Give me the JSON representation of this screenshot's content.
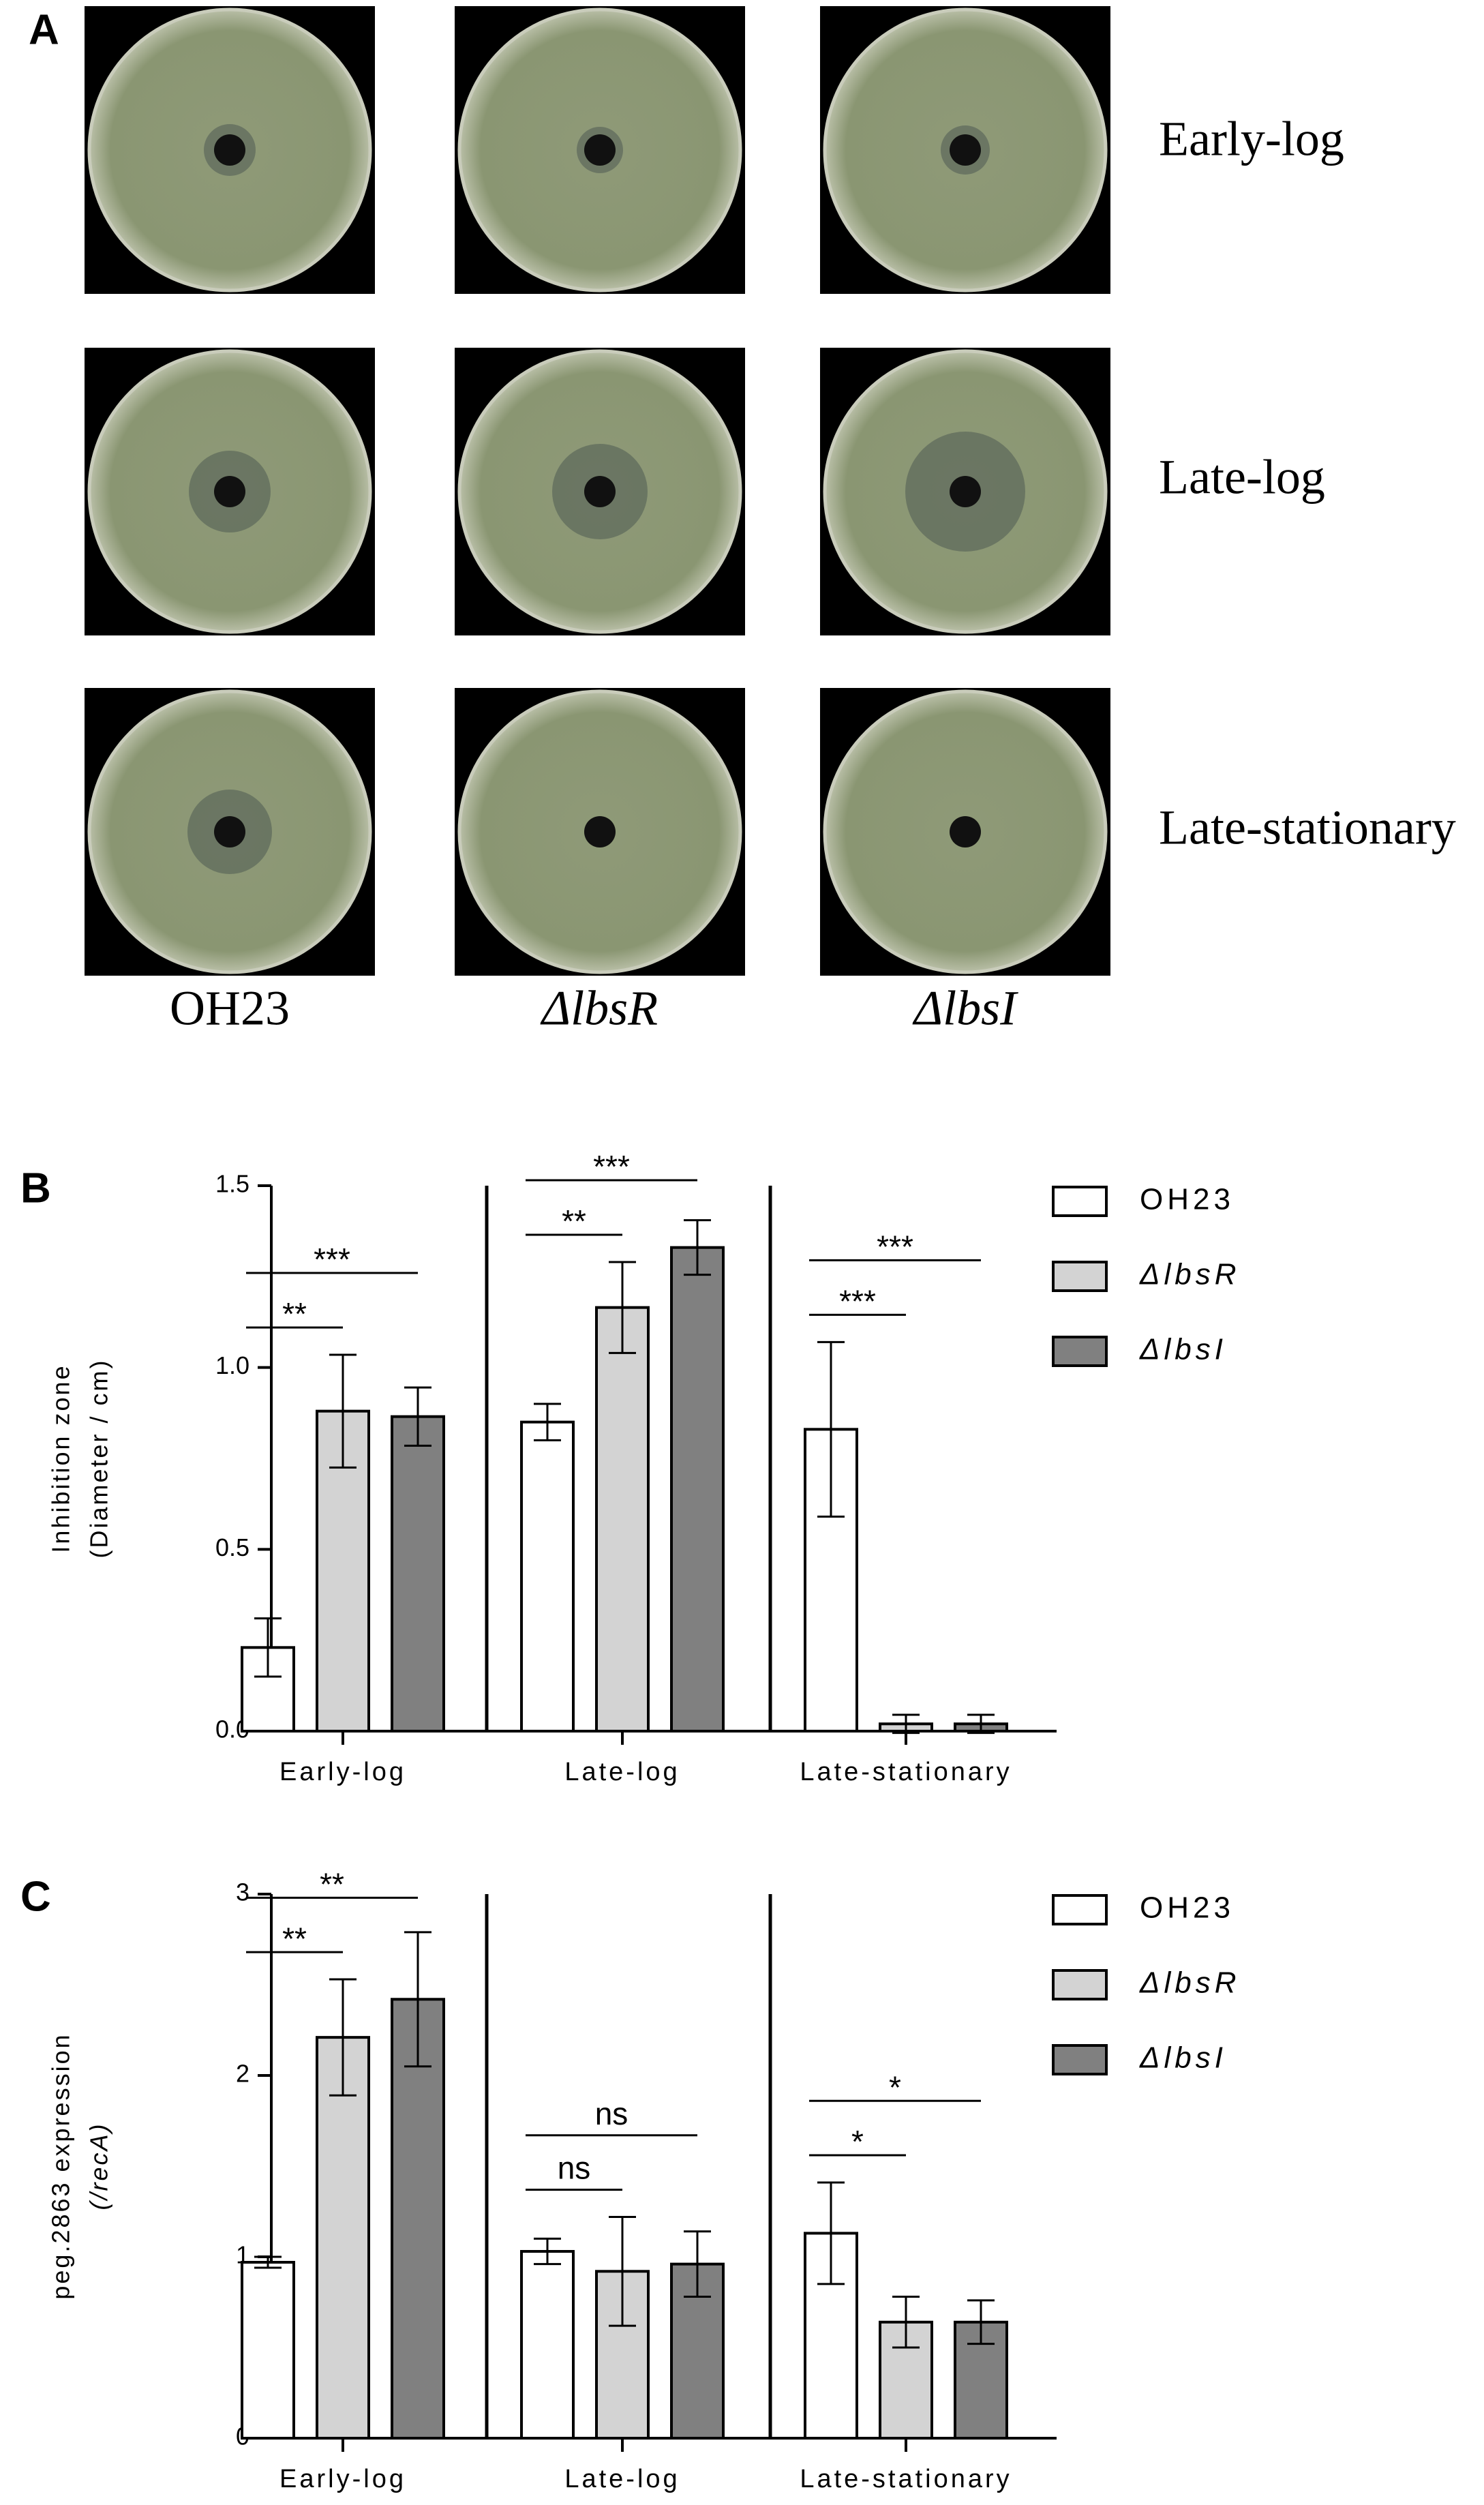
{
  "panel_a": {
    "label": "A",
    "rows": [
      "Early-log",
      "Late-log",
      "Late-stationary"
    ],
    "columns": [
      "OH23",
      "ΔlbsR",
      "ΔlbsI"
    ]
  },
  "chart_data": [
    {
      "type": "bar",
      "panel_label": "B",
      "ylabel": [
        "Inhibition zone",
        "(Diameter / cm)"
      ],
      "categories": [
        "Early-log",
        "Late-log",
        "Late-stationary"
      ],
      "series": [
        {
          "name": "OH23",
          "color": "#ffffff",
          "values": [
            0.23,
            0.85,
            0.83
          ],
          "errors": [
            0.08,
            0.05,
            0.24
          ]
        },
        {
          "name": "ΔlbsR",
          "color": "#d3d3d3",
          "values": [
            0.88,
            1.165,
            0.02
          ],
          "errors": [
            0.155,
            0.125,
            0.025
          ]
        },
        {
          "name": "ΔlbsI",
          "color": "#808080",
          "values": [
            0.865,
            1.33,
            0.02
          ],
          "errors": [
            0.08,
            0.075,
            0.025
          ]
        }
      ],
      "annotations": [
        {
          "category": 0,
          "from": 0,
          "to": 1,
          "label": "**"
        },
        {
          "category": 0,
          "from": 0,
          "to": 2,
          "label": "***"
        },
        {
          "category": 1,
          "from": 0,
          "to": 1,
          "label": "**"
        },
        {
          "category": 1,
          "from": 0,
          "to": 2,
          "label": "***"
        },
        {
          "category": 2,
          "from": 0,
          "to": 1,
          "label": "***"
        },
        {
          "category": 2,
          "from": 0,
          "to": 2,
          "label": "***"
        }
      ],
      "ylim": [
        0,
        1.5
      ],
      "yticks": [
        {
          "value": 0,
          "label": "0.0"
        },
        0.5,
        {
          "value": 1,
          "label": "1.0"
        },
        1.5
      ]
    },
    {
      "type": "bar",
      "panel_label": "C",
      "ylabel": [
        "peg.2863 expression",
        "(/recA)"
      ],
      "categories": [
        "Early-log",
        "Late-log",
        "Late-stationary"
      ],
      "series": [
        {
          "name": "OH23",
          "color": "#ffffff",
          "values": [
            0.97,
            1.03,
            1.13
          ],
          "errors": [
            0.03,
            0.07,
            0.28
          ]
        },
        {
          "name": "ΔlbsR",
          "color": "#d3d3d3",
          "values": [
            2.21,
            0.92,
            0.64
          ],
          "errors": [
            0.32,
            0.3,
            0.14
          ]
        },
        {
          "name": "ΔlbsI",
          "color": "#808080",
          "values": [
            2.42,
            0.96,
            0.64
          ],
          "errors": [
            0.37,
            0.18,
            0.12
          ]
        }
      ],
      "annotations": [
        {
          "category": 0,
          "from": 0,
          "to": 1,
          "label": "**"
        },
        {
          "category": 0,
          "from": 0,
          "to": 2,
          "label": "**"
        },
        {
          "category": 1,
          "from": 0,
          "to": 1,
          "label": "ns"
        },
        {
          "category": 1,
          "from": 0,
          "to": 2,
          "label": "ns"
        },
        {
          "category": 2,
          "from": 0,
          "to": 1,
          "label": "*"
        },
        {
          "category": 2,
          "from": 0,
          "to": 2,
          "label": "*"
        }
      ],
      "ylim": [
        0,
        3
      ],
      "yticks": [
        0,
        1,
        2,
        3
      ]
    }
  ]
}
